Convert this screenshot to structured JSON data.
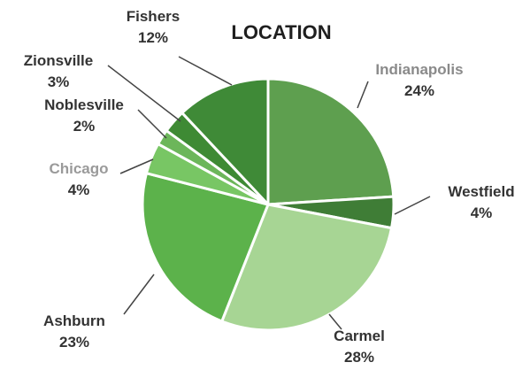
{
  "chart_data": {
    "type": "pie",
    "title": "LOCATION",
    "slices": [
      {
        "label": "Indianapolis",
        "value": 24,
        "pct_label": "24%",
        "color": "#5e9f4f",
        "label_color": "#8a8a8a"
      },
      {
        "label": "Westfield",
        "value": 4,
        "pct_label": "4%",
        "color": "#3f7d36",
        "label_color": "#333333"
      },
      {
        "label": "Carmel",
        "value": 28,
        "pct_label": "28%",
        "color": "#a7d594",
        "label_color": "#333333"
      },
      {
        "label": "Ashburn",
        "value": 23,
        "pct_label": "23%",
        "color": "#5cb24b",
        "label_color": "#333333"
      },
      {
        "label": "Chicago",
        "value": 4,
        "pct_label": "4%",
        "color": "#78c664",
        "label_color": "#9a9a9a"
      },
      {
        "label": "Noblesville",
        "value": 2,
        "pct_label": "2%",
        "color": "#6cb65a",
        "label_color": "#333333"
      },
      {
        "label": "Zionsville",
        "value": 3,
        "pct_label": "3%",
        "color": "#3e8a34",
        "label_color": "#333333"
      },
      {
        "label": "Fishers",
        "value": 12,
        "pct_label": "12%",
        "color": "#3f8a37",
        "label_color": "#333333"
      }
    ]
  }
}
